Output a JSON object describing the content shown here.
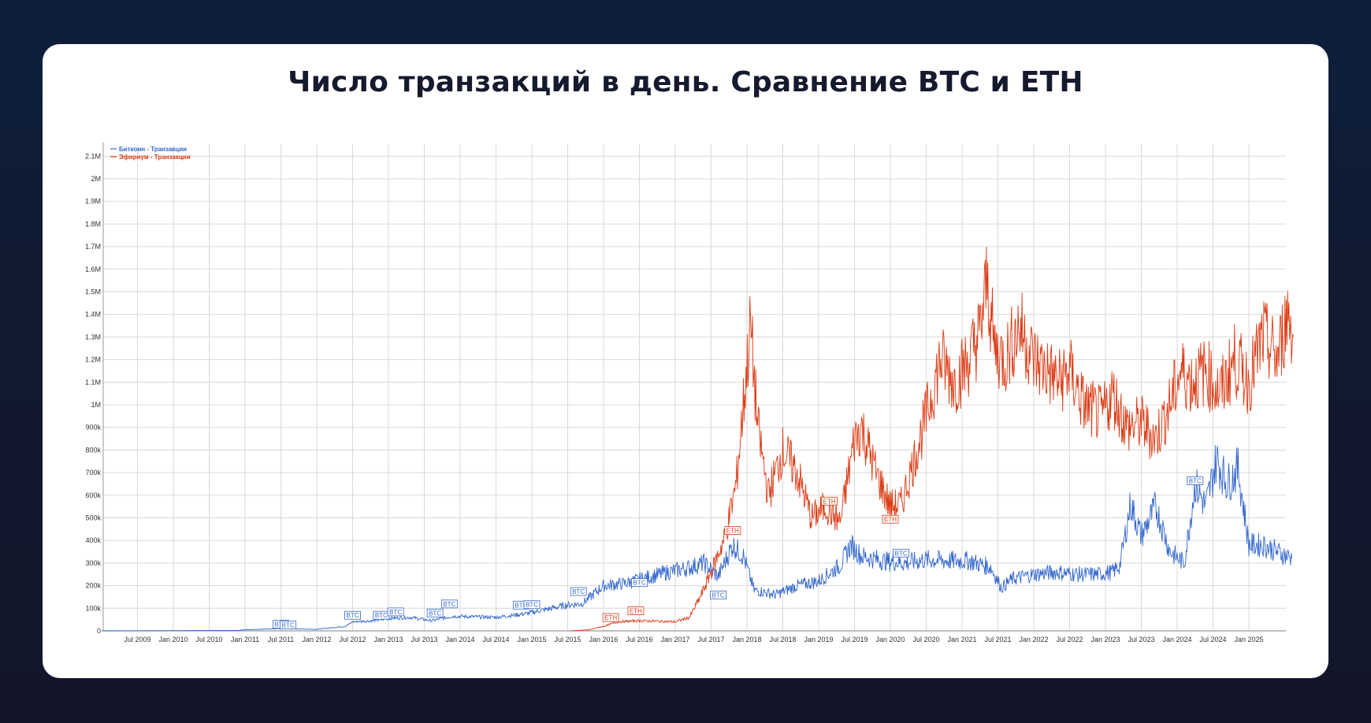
{
  "title": "Число транзакций в день. Сравнение BTC и ETH",
  "colors": {
    "btc": "#3366cc",
    "eth": "#dc3912",
    "grid": "#d8d8d8",
    "card": "#ffffff",
    "background": "#0f1b35"
  },
  "chart_data": {
    "type": "line",
    "title": "Число транзакций в день. Сравнение BTC и ETH",
    "xlabel": "",
    "ylabel": "",
    "ylim": [
      0,
      2150000
    ],
    "grid": true,
    "legend_position": "top-left",
    "legend": [
      "Биткоин - Транзакции",
      "Эфириум - Транзакции"
    ],
    "y_ticks": [
      "0",
      "100k",
      "200k",
      "300k",
      "400k",
      "500k",
      "600k",
      "700k",
      "800k",
      "900k",
      "1M",
      "1.1M",
      "1.2M",
      "1.3M",
      "1.4M",
      "1.5M",
      "1.6M",
      "1.7M",
      "1.8M",
      "1.9M",
      "2M",
      "2.1M"
    ],
    "x_ticks": [
      "Jul 2009",
      "Jan 2010",
      "Jul 2010",
      "Jan 2011",
      "Jul 2011",
      "Jan 2012",
      "Jul 2012",
      "Jan 2013",
      "Jul 2013",
      "Jan 2014",
      "Jul 2014",
      "Jan 2015",
      "Jul 2015",
      "Jan 2016",
      "Jul 2016",
      "Jan 2017",
      "Jul 2017",
      "Jan 2018",
      "Jul 2018",
      "Jan 2019",
      "Jul 2019",
      "Jan 2020",
      "Jul 2020",
      "Jan 2021",
      "Jul 2021",
      "Jan 2022",
      "Jul 2022",
      "Jan 2023",
      "Jul 2023",
      "Jan 2024",
      "Jul 2024",
      "Jan 2025"
    ],
    "series": [
      {
        "name": "Биткоин - Транзакции",
        "color": "#3366cc",
        "x": [
          2009.0,
          2010.0,
          2010.9,
          2011.0,
          2011.5,
          2012.0,
          2012.4,
          2012.5,
          2012.8,
          2013.0,
          2013.3,
          2013.6,
          2013.9,
          2014.2,
          2014.5,
          2014.9,
          2015.2,
          2015.5,
          2015.7,
          2016.0,
          2016.3,
          2016.6,
          2016.9,
          2017.2,
          2017.4,
          2017.6,
          2017.8,
          2017.95,
          2018.1,
          2018.4,
          2018.7,
          2019.0,
          2019.3,
          2019.45,
          2019.6,
          2019.9,
          2020.2,
          2020.5,
          2020.8,
          2021.1,
          2021.4,
          2021.55,
          2021.7,
          2022.0,
          2022.3,
          2022.6,
          2022.9,
          2023.1,
          2023.2,
          2023.35,
          2023.5,
          2023.7,
          2023.9,
          2024.1,
          2024.25,
          2024.4,
          2024.55,
          2024.7,
          2024.85,
          2025.0,
          2025.2,
          2025.4,
          2025.6
        ],
        "values": [
          0,
          1000,
          2000,
          5000,
          10000,
          7000,
          20000,
          40000,
          45000,
          55000,
          60000,
          45000,
          65000,
          62000,
          60000,
          75000,
          95000,
          115000,
          120000,
          200000,
          210000,
          235000,
          260000,
          280000,
          300000,
          240000,
          380000,
          330000,
          180000,
          160000,
          200000,
          220000,
          290000,
          380000,
          330000,
          310000,
          300000,
          315000,
          310000,
          310000,
          280000,
          190000,
          230000,
          250000,
          260000,
          250000,
          250000,
          260000,
          290000,
          560000,
          420000,
          550000,
          350000,
          300000,
          650000,
          550000,
          760000,
          650000,
          720000,
          380000,
          380000,
          350000,
          320000
        ]
      },
      {
        "name": "Эфириум - Транзакции",
        "color": "#dc3912",
        "x": [
          2015.55,
          2015.8,
          2016.0,
          2016.2,
          2016.5,
          2016.8,
          2017.0,
          2017.2,
          2017.35,
          2017.5,
          2017.7,
          2017.85,
          2017.95,
          2018.05,
          2018.15,
          2018.3,
          2018.5,
          2018.7,
          2018.9,
          2019.1,
          2019.3,
          2019.5,
          2019.6,
          2019.8,
          2020.0,
          2020.15,
          2020.3,
          2020.5,
          2020.7,
          2020.9,
          2021.1,
          2021.25,
          2021.35,
          2021.45,
          2021.6,
          2021.8,
          2022.0,
          2022.2,
          2022.35,
          2022.5,
          2022.7,
          2022.95,
          2023.1,
          2023.3,
          2023.5,
          2023.7,
          2023.9,
          2024.05,
          2024.2,
          2024.4,
          2024.6,
          2024.8,
          2025.0,
          2025.2,
          2025.4,
          2025.55,
          2025.62
        ],
        "values": [
          0,
          5000,
          20000,
          40000,
          45000,
          42000,
          40000,
          60000,
          150000,
          260000,
          420000,
          650000,
          1000000,
          1350000,
          900000,
          600000,
          800000,
          700000,
          500000,
          550000,
          480000,
          850000,
          900000,
          700000,
          550000,
          560000,
          720000,
          950000,
          1200000,
          1100000,
          1200000,
          1320000,
          1550000,
          1250000,
          1200000,
          1350000,
          1200000,
          1150000,
          1100000,
          1150000,
          1000000,
          950000,
          1050000,
          900000,
          920000,
          850000,
          1000000,
          1150000,
          1100000,
          1150000,
          1050000,
          1200000,
          1100000,
          1300000,
          1200000,
          1420000,
          1300000
        ]
      }
    ],
    "annotations": [
      {
        "series": "BTC",
        "label": "BTC",
        "x": 2011.5,
        "value": 15000
      },
      {
        "series": "BTC",
        "label": "BTC",
        "x": 2011.6,
        "value": 12000
      },
      {
        "series": "BTC",
        "label": "BTC",
        "x": 2012.5,
        "value": 55000
      },
      {
        "series": "BTC",
        "label": "BTC",
        "x": 2012.9,
        "value": 55000
      },
      {
        "series": "BTC",
        "label": "BTC",
        "x": 2013.1,
        "value": 70000
      },
      {
        "series": "BTC",
        "label": "BTC",
        "x": 2013.65,
        "value": 65000
      },
      {
        "series": "BTC",
        "label": "BTC",
        "x": 2013.85,
        "value": 105000
      },
      {
        "series": "BTC",
        "label": "BTC",
        "x": 2014.85,
        "value": 100000
      },
      {
        "series": "BTC",
        "label": "BTC",
        "x": 2015.0,
        "value": 102000
      },
      {
        "series": "BTC",
        "label": "BTC",
        "x": 2015.65,
        "value": 160000
      },
      {
        "series": "BTC",
        "label": "BTC",
        "x": 2016.5,
        "value": 200000
      },
      {
        "series": "BTC",
        "label": "BTC",
        "x": 2017.6,
        "value": 145000
      },
      {
        "series": "BTC",
        "label": "BTC",
        "x": 2020.15,
        "value": 330000
      },
      {
        "series": "BTC",
        "label": "BTC",
        "x": 2024.25,
        "value": 650000
      },
      {
        "series": "ETH",
        "label": "ETH",
        "x": 2016.1,
        "value": 45000
      },
      {
        "series": "ETH",
        "label": "ETH",
        "x": 2016.45,
        "value": 75000
      },
      {
        "series": "ETH",
        "label": "ETH",
        "x": 2017.8,
        "value": 430000
      },
      {
        "series": "ETH",
        "label": "ETH",
        "x": 2019.15,
        "value": 560000
      },
      {
        "series": "ETH",
        "label": "ETH",
        "x": 2020.0,
        "value": 480000
      }
    ]
  }
}
